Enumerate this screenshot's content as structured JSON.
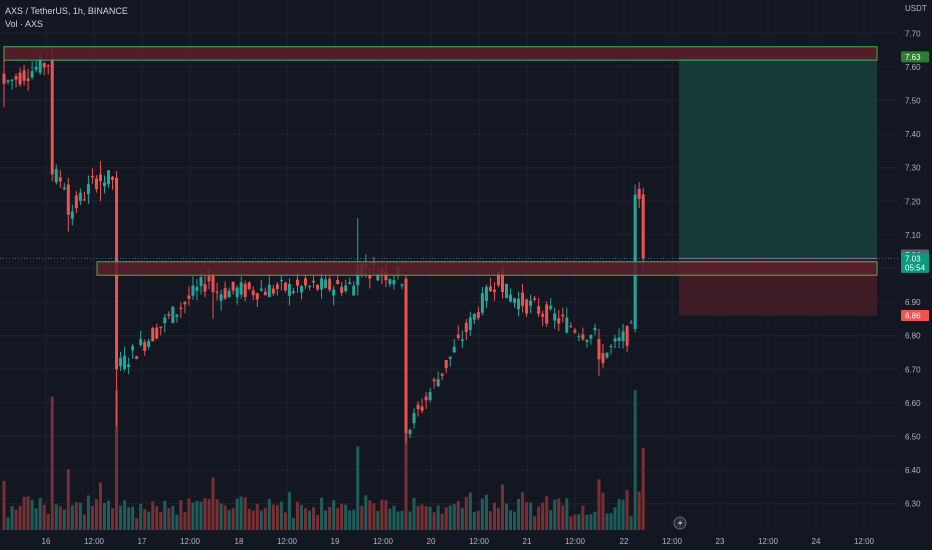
{
  "header": {
    "symbol_line": "AXS / TetherUS, 1h, BINANCE",
    "volume_line": "Vol · AXS"
  },
  "colors": {
    "background": "#131722",
    "up": "#26a69a",
    "down": "#ef5350",
    "zone_fill": "#5d1f2a",
    "zone_border": "#4caf50",
    "target_fill": "#153a37",
    "stop_fill": "#3d1c25"
  },
  "chart_data": {
    "type": "candlestick",
    "currency": "USDT",
    "y_ticks": [
      "7.70",
      "7.60",
      "7.50",
      "7.40",
      "7.30",
      "7.20",
      "7.10",
      "7.00",
      "6.90",
      "6.80",
      "6.70",
      "6.60",
      "6.50",
      "6.40",
      "6.30"
    ],
    "y_range": [
      6.26,
      7.72
    ],
    "x_ticks": [
      "16",
      "12:00",
      "17",
      "12:00",
      "18",
      "12:00",
      "19",
      "12:00",
      "20",
      "12:00",
      "21",
      "12:00",
      "22",
      "12:00",
      "23",
      "12:00",
      "24",
      "12:00"
    ],
    "price_badges": [
      {
        "label": "7.63",
        "value": 7.63,
        "color": "#2e7d32"
      },
      {
        "label": "7.04",
        "value": 7.04,
        "color": "#5d606b"
      },
      {
        "label": "7.03",
        "sublabel": "05:54",
        "value": 7.03,
        "color": "#089981"
      },
      {
        "label": "6.86",
        "value": 6.86,
        "color": "#ef5350"
      }
    ],
    "zones": [
      {
        "name": "upper-resistance",
        "top": 7.66,
        "bottom": 7.62
      },
      {
        "name": "mid-resistance",
        "top": 7.02,
        "bottom": 6.98
      }
    ],
    "position": {
      "entry": 7.03,
      "target": 7.63,
      "stop": 6.86
    },
    "key_candles": [
      {
        "time": "16 start",
        "open": 7.58,
        "high": 7.62,
        "low": 7.48,
        "close": 7.55
      },
      {
        "time": "16 08:00",
        "open": 7.62,
        "high": 7.66,
        "low": 7.26,
        "close": 7.28
      },
      {
        "time": "16 12:00",
        "open": 7.25,
        "high": 7.27,
        "low": 7.11,
        "close": 7.16
      },
      {
        "time": "16 20:00",
        "open": 7.28,
        "high": 7.32,
        "low": 7.2,
        "close": 7.26
      },
      {
        "time": "17 00:00",
        "open": 7.27,
        "high": 7.29,
        "low": 6.53,
        "close": 6.7
      },
      {
        "time": "18 00:00",
        "open": 6.98,
        "high": 6.99,
        "low": 6.85,
        "close": 6.93
      },
      {
        "time": "19 12:00",
        "open": 6.95,
        "high": 7.15,
        "low": 6.92,
        "close": 7.01
      },
      {
        "time": "20 00:00",
        "open": 6.97,
        "high": 6.98,
        "low": 6.48,
        "close": 6.51
      },
      {
        "time": "21 00:00",
        "open": 7.0,
        "high": 7.01,
        "low": 6.91,
        "close": 6.93
      },
      {
        "time": "22 00:00",
        "open": 6.79,
        "high": 6.82,
        "low": 6.68,
        "close": 6.73
      },
      {
        "time": "22 09:00",
        "open": 6.82,
        "high": 7.25,
        "low": 6.81,
        "close": 7.22
      },
      {
        "time": "22 11:00",
        "open": 7.22,
        "high": 7.24,
        "low": 6.99,
        "close": 7.03
      }
    ]
  }
}
